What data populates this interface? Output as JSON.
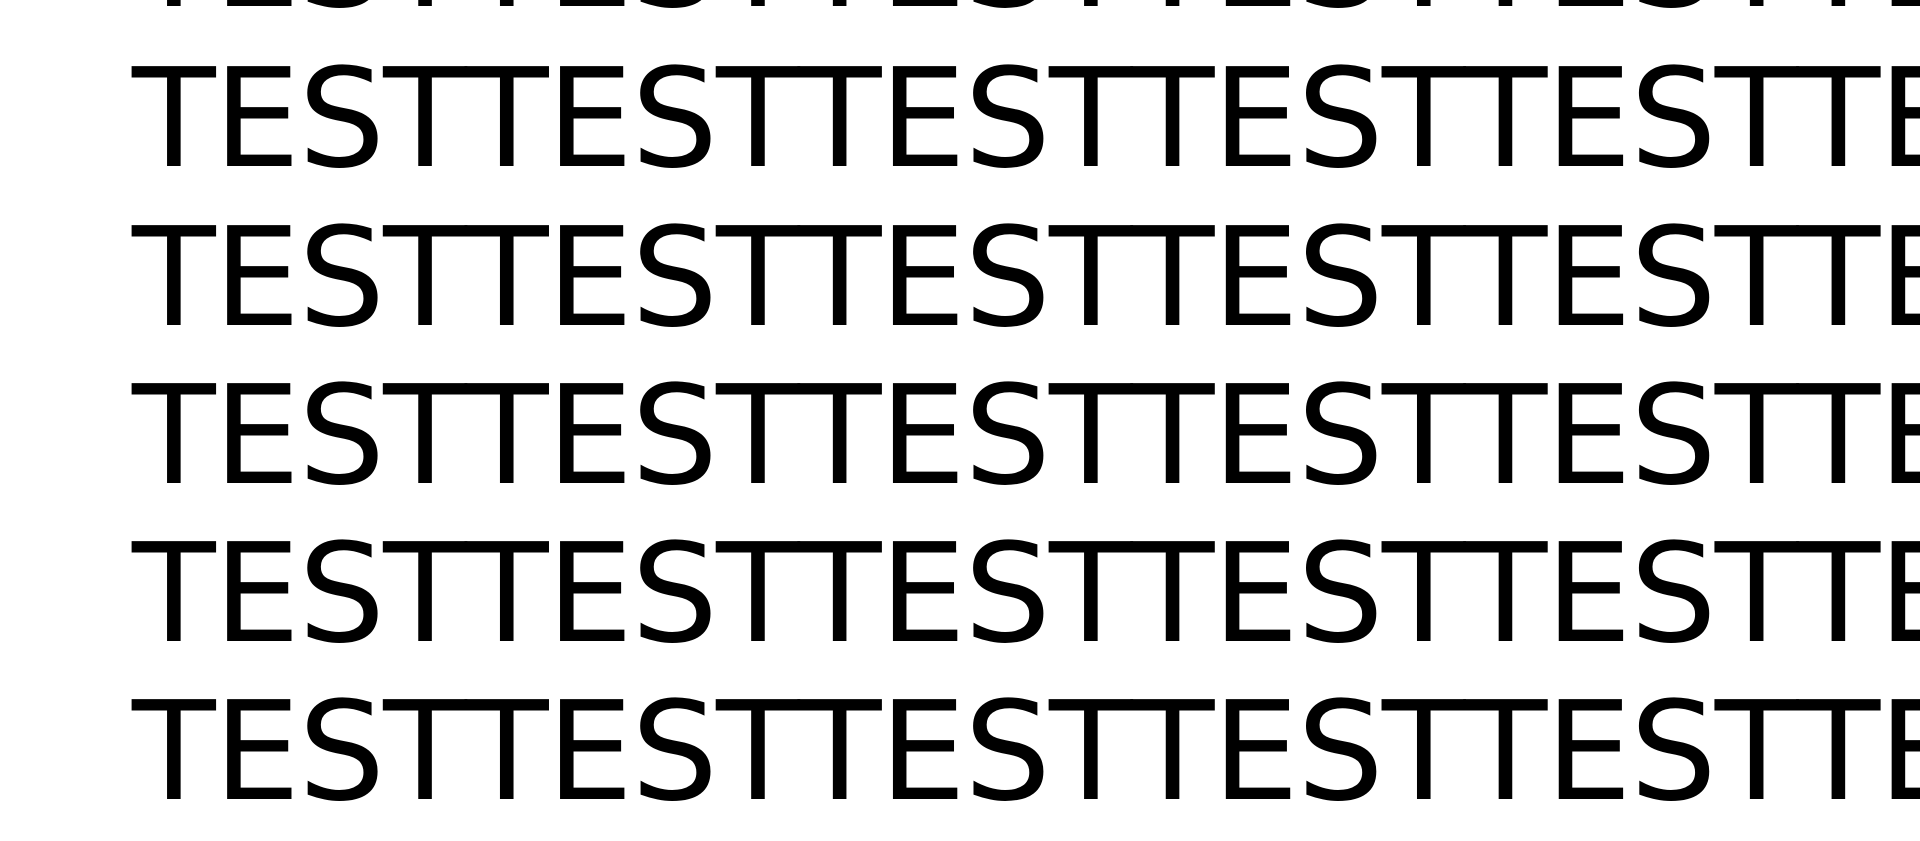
{
  "rows": [
    {
      "words": [
        "TEST",
        "TEST",
        "TEST",
        "TEST",
        "TEST",
        "TEST"
      ]
    },
    {
      "words": [
        "TEST",
        "TEST",
        "TEST",
        "TEST",
        "TEST",
        "TEST"
      ]
    },
    {
      "words": [
        "TEST",
        "TEST",
        "TEST",
        "TEST",
        "TEST",
        "TEST"
      ]
    },
    {
      "words": [
        "TEST",
        "TEST",
        "TEST",
        "TEST",
        "TEST",
        "TEST"
      ]
    },
    {
      "words": [
        "TEST",
        "TEST",
        "TEST",
        "TEST",
        "TEST",
        "TEST"
      ]
    },
    {
      "words": [
        "TEST",
        "TEST",
        "TEST",
        "TEST",
        "TEST",
        "TEST"
      ]
    }
  ],
  "colors": {
    "background": "#ffffff",
    "text": "#000000"
  }
}
